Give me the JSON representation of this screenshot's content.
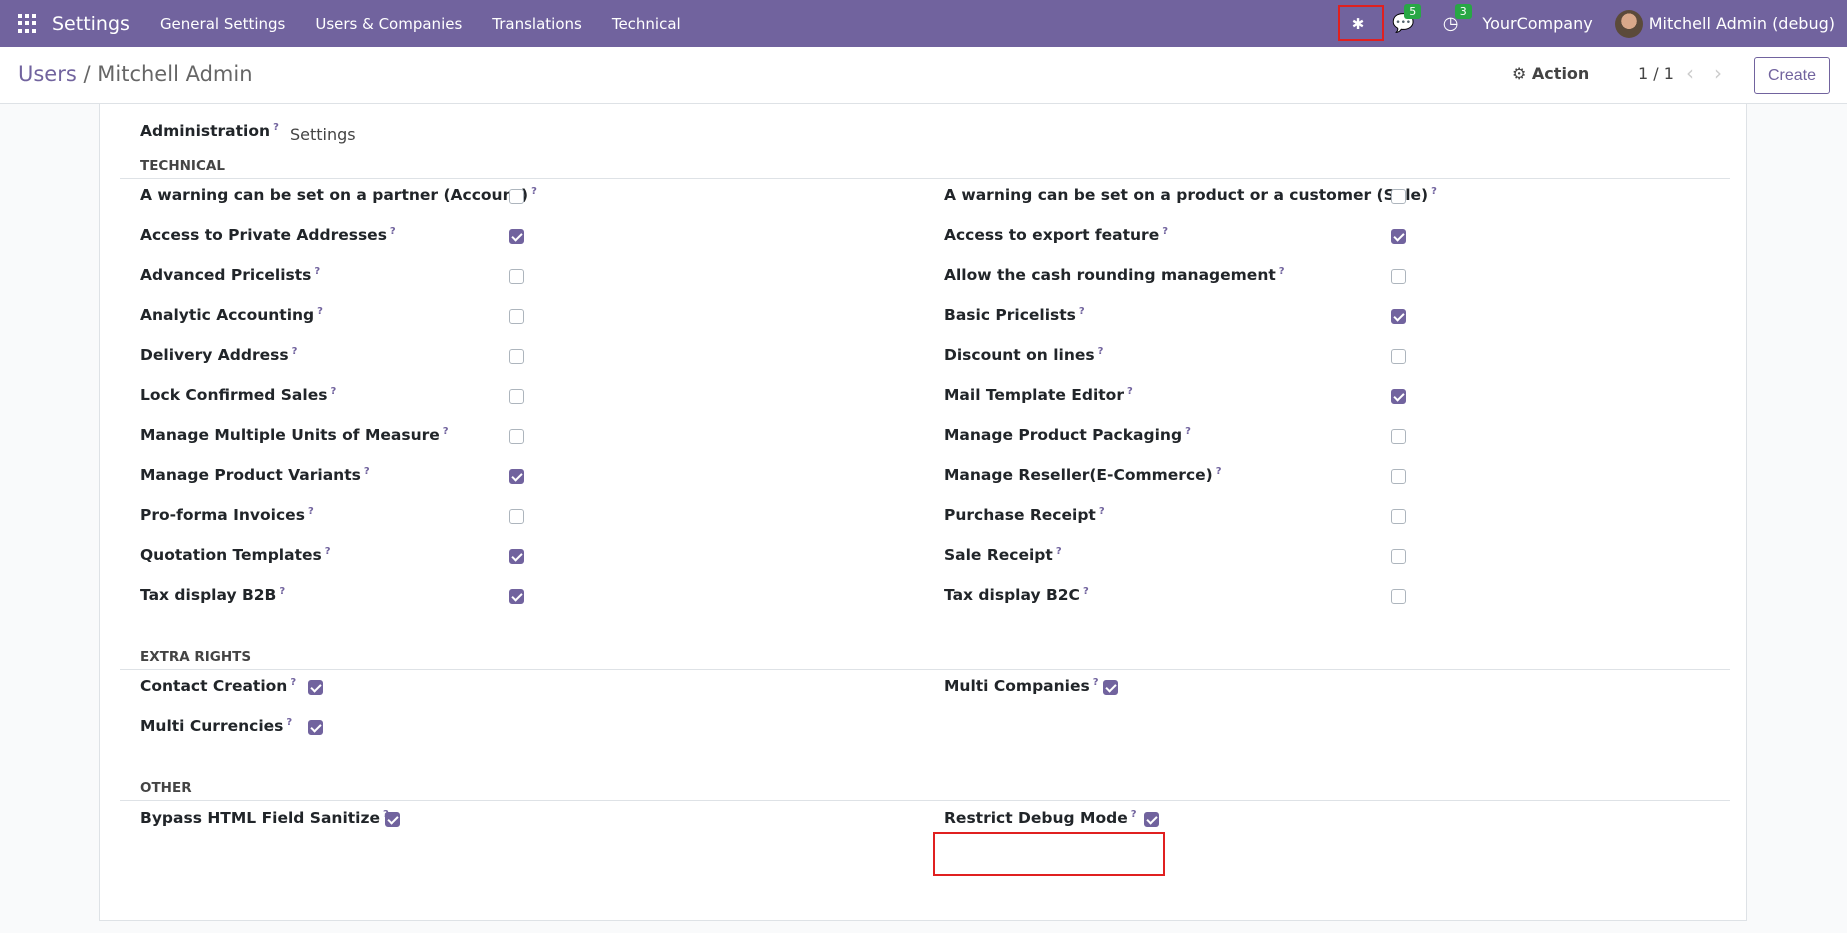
{
  "navbar": {
    "brand": "Settings",
    "menu": [
      "General Settings",
      "Users & Companies",
      "Translations",
      "Technical"
    ],
    "messages_count": "5",
    "activities_count": "3",
    "company": "YourCompany",
    "user": "Mitchell Admin (debug)",
    "accent": "#71639e"
  },
  "control_panel": {
    "breadcrumb_parent": "Users",
    "breadcrumb_sep": "/",
    "breadcrumb_current": "Mitchell Admin",
    "action_label": "Action",
    "pager": "1 / 1",
    "create_label": "Create"
  },
  "form": {
    "administration_label": "Administration",
    "administration_value": "Settings",
    "technical": {
      "title": "TECHNICAL",
      "left": [
        {
          "label": "A warning can be set on a partner (Account)",
          "checked": false
        },
        {
          "label": "Access to Private Addresses",
          "checked": true
        },
        {
          "label": "Advanced Pricelists",
          "checked": false
        },
        {
          "label": "Analytic Accounting",
          "checked": false
        },
        {
          "label": "Delivery Address",
          "checked": false
        },
        {
          "label": "Lock Confirmed Sales",
          "checked": false
        },
        {
          "label": "Manage Multiple Units of Measure",
          "checked": false
        },
        {
          "label": "Manage Product Variants",
          "checked": true
        },
        {
          "label": "Pro-forma Invoices",
          "checked": false
        },
        {
          "label": "Quotation Templates",
          "checked": true
        },
        {
          "label": "Tax display B2B",
          "checked": true
        }
      ],
      "right": [
        {
          "label": "A warning can be set on a product or a customer (Sale)",
          "checked": false
        },
        {
          "label": "Access to export feature",
          "checked": true
        },
        {
          "label": "Allow the cash rounding management",
          "checked": false
        },
        {
          "label": "Basic Pricelists",
          "checked": true
        },
        {
          "label": "Discount on lines",
          "checked": false
        },
        {
          "label": "Mail Template Editor",
          "checked": true
        },
        {
          "label": "Manage Product Packaging",
          "checked": false
        },
        {
          "label": "Manage Reseller(E-Commerce)",
          "checked": false
        },
        {
          "label": "Purchase Receipt",
          "checked": false
        },
        {
          "label": "Sale Receipt",
          "checked": false
        },
        {
          "label": "Tax display B2C",
          "checked": false
        }
      ]
    },
    "extra_rights": {
      "title": "EXTRA RIGHTS",
      "items": [
        {
          "label": "Contact Creation",
          "checked": true
        },
        {
          "label": "Multi Companies",
          "checked": true
        },
        {
          "label": "Multi Currencies",
          "checked": true
        }
      ]
    },
    "other": {
      "title": "OTHER",
      "items": [
        {
          "label": "Bypass HTML Field Sanitize",
          "checked": true
        },
        {
          "label": "Restrict Debug Mode",
          "checked": true
        }
      ]
    },
    "help_mark": "?"
  }
}
